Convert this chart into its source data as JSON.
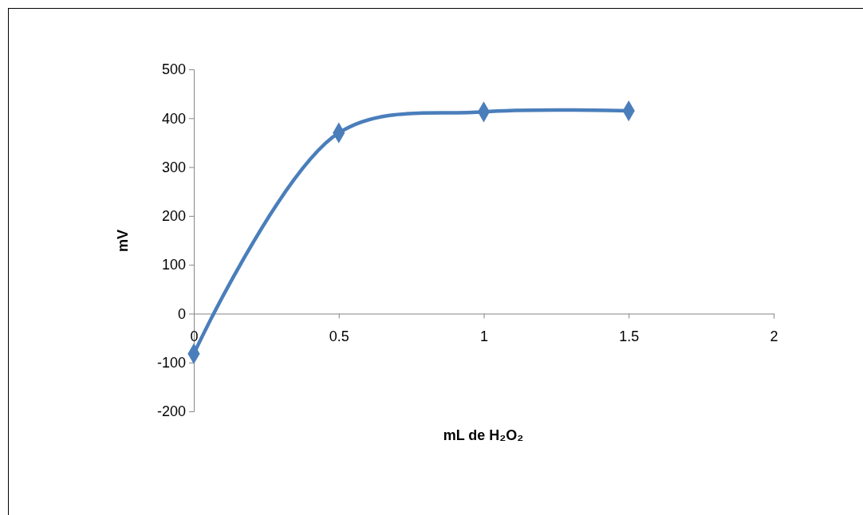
{
  "chart_data": {
    "type": "line",
    "xlabel": "mL de H₂O₂",
    "ylabel": "mV",
    "x": [
      0,
      0.5,
      1,
      1.5
    ],
    "series": [
      {
        "color": "#4a7ebb",
        "values": [
          -82,
          370,
          413,
          415
        ]
      }
    ],
    "xlim": [
      0,
      2
    ],
    "xticks": [
      0,
      0.5,
      1,
      1.5,
      2
    ],
    "ylim": [
      -200,
      500
    ],
    "yticks": [
      -200,
      -100,
      0,
      100,
      200,
      300,
      400,
      500
    ],
    "grid": false,
    "marker": "diamond",
    "line_style": "solid"
  }
}
